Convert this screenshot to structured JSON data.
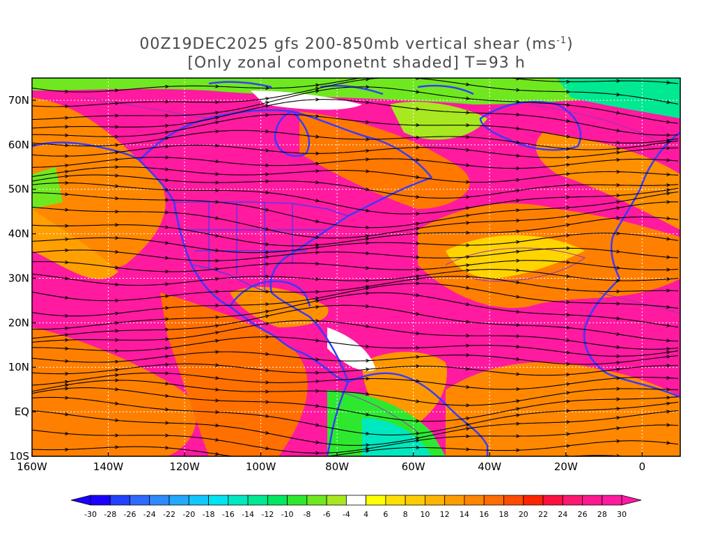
{
  "title": {
    "line1": "00Z19DEC2025 gfs 200-850mb vertical shear (ms",
    "line1_sup": "-1",
    "line1_end": ")",
    "line2": "[Only zonal componetnt shaded] T=93 h"
  },
  "map": {
    "lon_range": [
      -160,
      10
    ],
    "lat_range": [
      -10,
      75
    ],
    "lon_ticks": [
      {
        "value": -160,
        "label": "160W"
      },
      {
        "value": -140,
        "label": "140W"
      },
      {
        "value": -120,
        "label": "120W"
      },
      {
        "value": -100,
        "label": "100W"
      },
      {
        "value": -80,
        "label": "80W"
      },
      {
        "value": -60,
        "label": "60W"
      },
      {
        "value": -40,
        "label": "40W"
      },
      {
        "value": -20,
        "label": "20W"
      },
      {
        "value": 0,
        "label": "0"
      }
    ],
    "lat_ticks": [
      {
        "value": 70,
        "label": "70N"
      },
      {
        "value": 60,
        "label": "60N"
      },
      {
        "value": 50,
        "label": "50N"
      },
      {
        "value": 40,
        "label": "40N"
      },
      {
        "value": 30,
        "label": "30N"
      },
      {
        "value": 20,
        "label": "20N"
      },
      {
        "value": 10,
        "label": "10N"
      },
      {
        "value": 0,
        "label": "EQ"
      },
      {
        "value": -10,
        "label": "10S"
      }
    ],
    "colors": {
      "coastline": "#3a3aff",
      "streamline": "#000000",
      "contour": "#9a2fc0",
      "grid": "#ffffff"
    }
  },
  "colorbar": {
    "labels": [
      "-30",
      "-28",
      "-26",
      "-24",
      "-22",
      "-20",
      "-18",
      "-16",
      "-14",
      "-12",
      "-10",
      "-8",
      "-6",
      "-4",
      "4",
      "6",
      "8",
      "10",
      "12",
      "14",
      "16",
      "18",
      "20",
      "22",
      "24",
      "26",
      "28",
      "30"
    ],
    "colors": [
      "#1b00ff",
      "#2440ff",
      "#2f6aff",
      "#2f8aff",
      "#22a8ff",
      "#10c8ff",
      "#00e4f0",
      "#00e8c0",
      "#00e890",
      "#00e860",
      "#2ee830",
      "#70e820",
      "#a8e820",
      "#ffffff",
      "#ffff00",
      "#ffe000",
      "#ffcc00",
      "#ffb400",
      "#ff9c00",
      "#ff8400",
      "#ff6c00",
      "#ff4c00",
      "#ff2400",
      "#ff1040",
      "#ff1870",
      "#ff1890",
      "#ff1aa0"
    ]
  }
}
